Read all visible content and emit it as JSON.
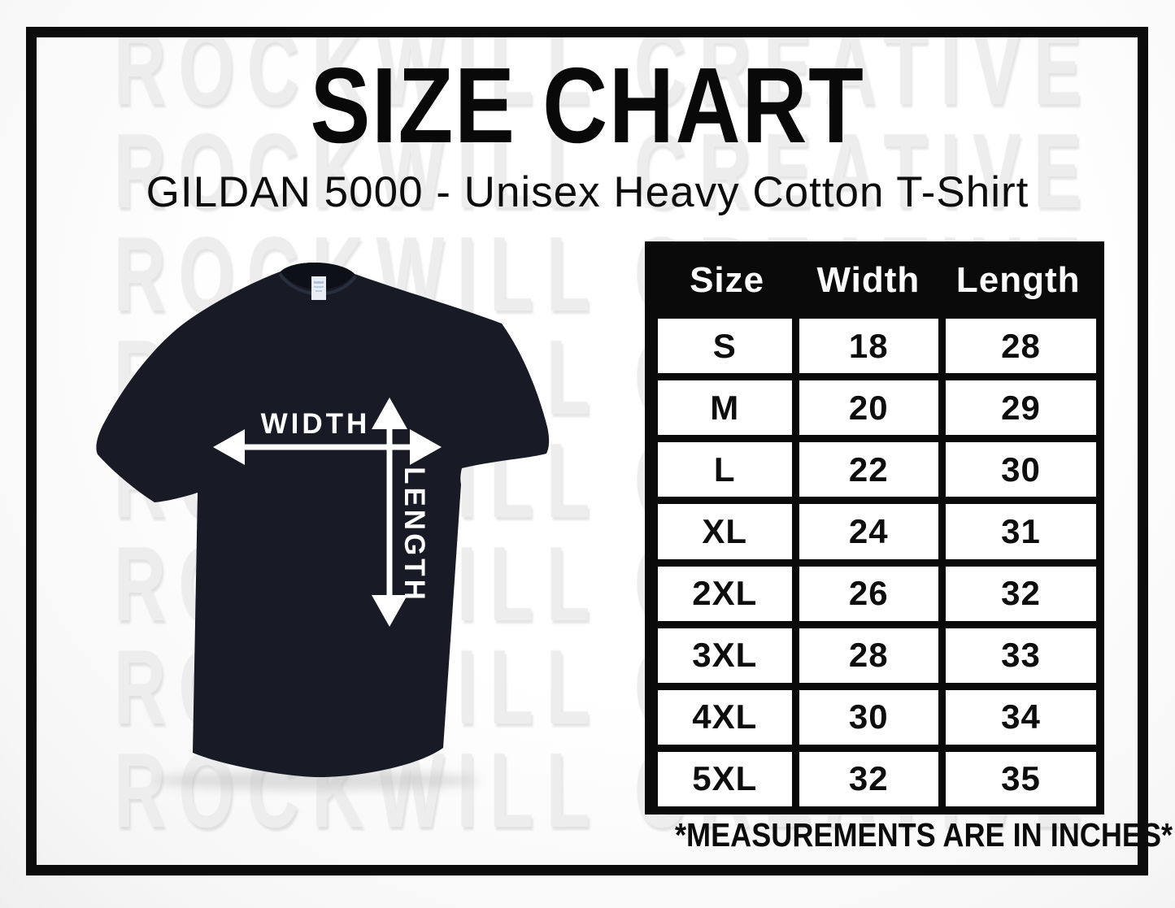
{
  "header": {
    "title": "SIZE CHART",
    "subtitle": "GILDAN 5000 - Unisex Heavy Cotton T-Shirt"
  },
  "watermark": {
    "text": "ROCKWILL CREATIVE",
    "repeat_rows": 8,
    "color": "#ededed"
  },
  "shirt": {
    "width_label": "WIDTH",
    "length_label": "LENGTH",
    "width_arrow_icon": "double-headed-horizontal-arrow",
    "length_arrow_icon": "double-headed-vertical-arrow",
    "color": "#181b26",
    "arrow_color": "#ffffff"
  },
  "table": {
    "headers": [
      "Size",
      "Width",
      "Length"
    ],
    "rows": [
      [
        "S",
        "18",
        "28"
      ],
      [
        "M",
        "20",
        "29"
      ],
      [
        "L",
        "22",
        "30"
      ],
      [
        "XL",
        "24",
        "31"
      ],
      [
        "2XL",
        "26",
        "32"
      ],
      [
        "3XL",
        "28",
        "33"
      ],
      [
        "4XL",
        "30",
        "34"
      ],
      [
        "5XL",
        "32",
        "35"
      ]
    ],
    "header_bg": "#0a0a0a",
    "header_text_color": "#ffffff",
    "cell_bg": "#ffffff",
    "cell_text_color": "#0d0d0d"
  },
  "footnote": "*MEASUREMENTS ARE IN INCHES*",
  "frame_color": "#0c0c0c"
}
